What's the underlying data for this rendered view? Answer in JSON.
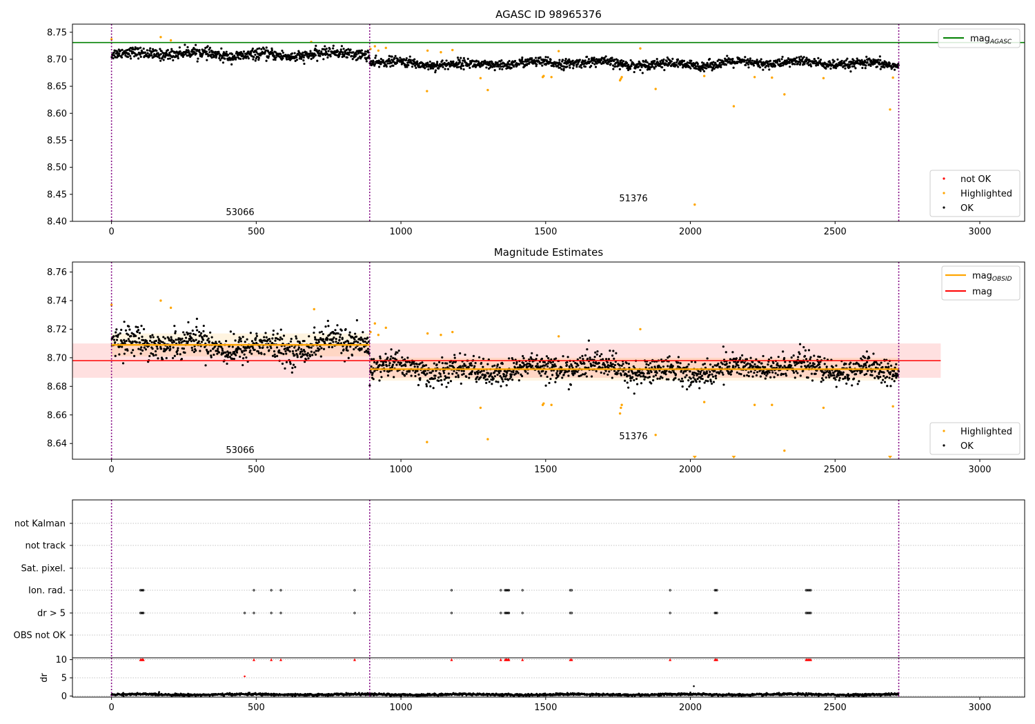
{
  "chart_data": [
    {
      "type": "scatter",
      "title": "AGASC ID 98965376",
      "xlim": [
        -135,
        3155
      ],
      "ylim": [
        8.4,
        8.765
      ],
      "xticks": [
        "0",
        "500",
        "1000",
        "1500",
        "2000",
        "2500",
        "3000"
      ],
      "yticks": [
        "8.40",
        "8.45",
        "8.50",
        "8.55",
        "8.60",
        "8.65",
        "8.70",
        "8.75"
      ],
      "obs_boundaries": [
        0,
        892,
        2720
      ],
      "obs_labels": [
        {
          "x": 445,
          "y": 8.415,
          "text": "53066"
        },
        {
          "x": 1806,
          "y": 8.44,
          "text": "51376"
        }
      ],
      "hline": {
        "label": "mag",
        "label_sub": "AGASC",
        "y": 8.731,
        "x": [
          -135,
          3155
        ],
        "color": "#008000"
      },
      "series": [
        {
          "name": "not OK",
          "color": "#ff0000",
          "points": []
        },
        {
          "name": "Highlighted",
          "color": "#ffa500",
          "points": [
            [
              0,
              8.737
            ],
            [
              170,
              8.741
            ],
            [
              205,
              8.735
            ],
            [
              690,
              8.732
            ],
            [
              895,
              8.719
            ],
            [
              910,
              8.724
            ],
            [
              922,
              8.716
            ],
            [
              948,
              8.721
            ],
            [
              1090,
              8.641
            ],
            [
              1092,
              8.716
            ],
            [
              1138,
              8.713
            ],
            [
              1178,
              8.717
            ],
            [
              1275,
              8.665
            ],
            [
              1300,
              8.643
            ],
            [
              1490,
              8.667
            ],
            [
              1493,
              8.669
            ],
            [
              1520,
              8.667
            ],
            [
              1545,
              8.715
            ],
            [
              1757,
              8.661
            ],
            [
              1760,
              8.664
            ],
            [
              1763,
              8.667
            ],
            [
              1827,
              8.72
            ],
            [
              1880,
              8.645
            ],
            [
              2015,
              8.431
            ],
            [
              2048,
              8.669
            ],
            [
              2150,
              8.613
            ],
            [
              2222,
              8.667
            ],
            [
              2282,
              8.666
            ],
            [
              2325,
              8.635
            ],
            [
              2460,
              8.665
            ],
            [
              2690,
              8.607
            ],
            [
              2700,
              8.666
            ]
          ]
        },
        {
          "name": "OK",
          "color": "#000000",
          "segments": [
            {
              "x0": 0,
              "x1": 892,
              "center": 8.709,
              "spread": 0.009,
              "n": 700
            },
            {
              "x0": 892,
              "x1": 2720,
              "center": 8.692,
              "spread": 0.008,
              "n": 1450
            }
          ]
        }
      ],
      "legends": [
        {
          "position": "upper right",
          "entries": [
            {
              "label": "mag",
              "sub": "AGASC"
            }
          ]
        },
        {
          "position": "lower right",
          "entries": [
            {
              "label": "not OK"
            },
            {
              "label": "Highlighted"
            },
            {
              "label": "OK"
            }
          ]
        }
      ]
    },
    {
      "type": "scatter",
      "title": "Magnitude Estimates",
      "xlim": [
        -135,
        3155
      ],
      "ylim": [
        8.629,
        8.767
      ],
      "xticks": [
        "0",
        "500",
        "1000",
        "1500",
        "2000",
        "2500",
        "3000"
      ],
      "yticks": [
        "8.64",
        "8.66",
        "8.68",
        "8.70",
        "8.72",
        "8.74",
        "8.76"
      ],
      "obs_boundaries": [
        0,
        892,
        2720
      ],
      "obs_labels": [
        {
          "x": 445,
          "y": 8.634,
          "text": "53066"
        },
        {
          "x": 1806,
          "y": 8.644,
          "text": "51376"
        }
      ],
      "lines": [
        {
          "label": "mag",
          "label_sub": "OBSID",
          "color": "#ffa500",
          "segments": [
            {
              "x0": 0,
              "x1": 892,
              "y": 8.709,
              "band": [
                8.701,
                8.717
              ]
            },
            {
              "x0": 892,
              "x1": 2720,
              "y": 8.692,
              "band": [
                8.684,
                8.7
              ]
            }
          ]
        },
        {
          "label": "mag",
          "color": "#ff0000",
          "segments": [
            {
              "x0": -135,
              "x1": 2865,
              "y": 8.698,
              "band": [
                8.686,
                8.71
              ]
            }
          ]
        }
      ],
      "series": [
        {
          "name": "Highlighted",
          "color": "#ffa500",
          "points": [
            [
              0,
              8.737
            ],
            [
              170,
              8.74
            ],
            [
              205,
              8.735
            ],
            [
              700,
              8.734
            ],
            [
              895,
              8.718
            ],
            [
              910,
              8.724
            ],
            [
              922,
              8.716
            ],
            [
              948,
              8.721
            ],
            [
              1090,
              8.641
            ],
            [
              1092,
              8.717
            ],
            [
              1138,
              8.716
            ],
            [
              1178,
              8.718
            ],
            [
              1275,
              8.665
            ],
            [
              1300,
              8.643
            ],
            [
              1490,
              8.667
            ],
            [
              1493,
              8.668
            ],
            [
              1520,
              8.667
            ],
            [
              1545,
              8.715
            ],
            [
              1757,
              8.661
            ],
            [
              1760,
              8.665
            ],
            [
              1763,
              8.667
            ],
            [
              1827,
              8.72
            ],
            [
              1880,
              8.646
            ],
            [
              2048,
              8.669
            ],
            [
              2222,
              8.667
            ],
            [
              2282,
              8.667
            ],
            [
              2325,
              8.635
            ],
            [
              2460,
              8.665
            ],
            [
              2700,
              8.666
            ]
          ]
        },
        {
          "name": "Highlighted (clipped)",
          "color": "#ffa500",
          "markers": [
            2015,
            2150,
            2690
          ]
        },
        {
          "name": "OK",
          "color": "#000000",
          "segments": [
            {
              "x0": 0,
              "x1": 892,
              "center": 8.709,
              "spread": 0.009,
              "n": 700
            },
            {
              "x0": 892,
              "x1": 2720,
              "center": 8.692,
              "spread": 0.008,
              "n": 1450
            }
          ]
        }
      ],
      "legends": [
        {
          "position": "upper right",
          "entries": [
            {
              "label": "mag",
              "sub": "OBSID"
            },
            {
              "label": "mag"
            }
          ]
        },
        {
          "position": "lower right",
          "entries": [
            {
              "label": "Highlighted"
            },
            {
              "label": "OK"
            }
          ]
        }
      ]
    },
    {
      "type": "scatter",
      "title": "",
      "xlim": [
        -135,
        3155
      ],
      "categories": [
        "not Kalman",
        "not track",
        "Sat. pixel.",
        "Ion. rad.",
        "dr > 5",
        "OBS not OK"
      ],
      "obs_boundaries": [
        0,
        892,
        2720
      ],
      "flag_points": {
        "Ion. rad.": [
          100,
          104,
          107,
          110,
          492,
          552,
          585,
          840,
          1175,
          1345,
          1360,
          1363,
          1366,
          1370,
          1373,
          1420,
          1585,
          1590,
          1930,
          2085,
          2088,
          2092,
          2400,
          2404,
          2408,
          2412,
          2416
        ],
        "dr > 5": [
          100,
          104,
          107,
          110,
          460,
          492,
          552,
          585,
          840,
          1175,
          1345,
          1360,
          1363,
          1366,
          1370,
          1373,
          1420,
          1585,
          1590,
          1930,
          2085,
          2088,
          2092,
          2400,
          2404,
          2408,
          2412,
          2416
        ]
      }
    },
    {
      "type": "scatter",
      "title": "",
      "ylabel": "dr",
      "xlim": [
        -135,
        3155
      ],
      "ylim": [
        -0.3,
        10.5
      ],
      "xticks": [
        "0",
        "500",
        "1000",
        "1500",
        "2000",
        "2500",
        "3000"
      ],
      "yticks": [
        "0",
        "5",
        "10"
      ],
      "obs_boundaries": [
        0,
        892,
        2720
      ],
      "clipped_red": [
        100,
        104,
        107,
        110,
        492,
        552,
        585,
        840,
        1175,
        1345,
        1360,
        1363,
        1366,
        1370,
        1373,
        1420,
        1585,
        1590,
        1930,
        2085,
        2088,
        2092,
        2400,
        2404,
        2408,
        2412,
        2416
      ],
      "outliers": [
        [
          460,
          5.4
        ],
        [
          2012,
          2.7
        ]
      ],
      "baseline": {
        "x0": 0,
        "x1": 2720,
        "center": 0.4,
        "spread": 0.25
      }
    }
  ]
}
